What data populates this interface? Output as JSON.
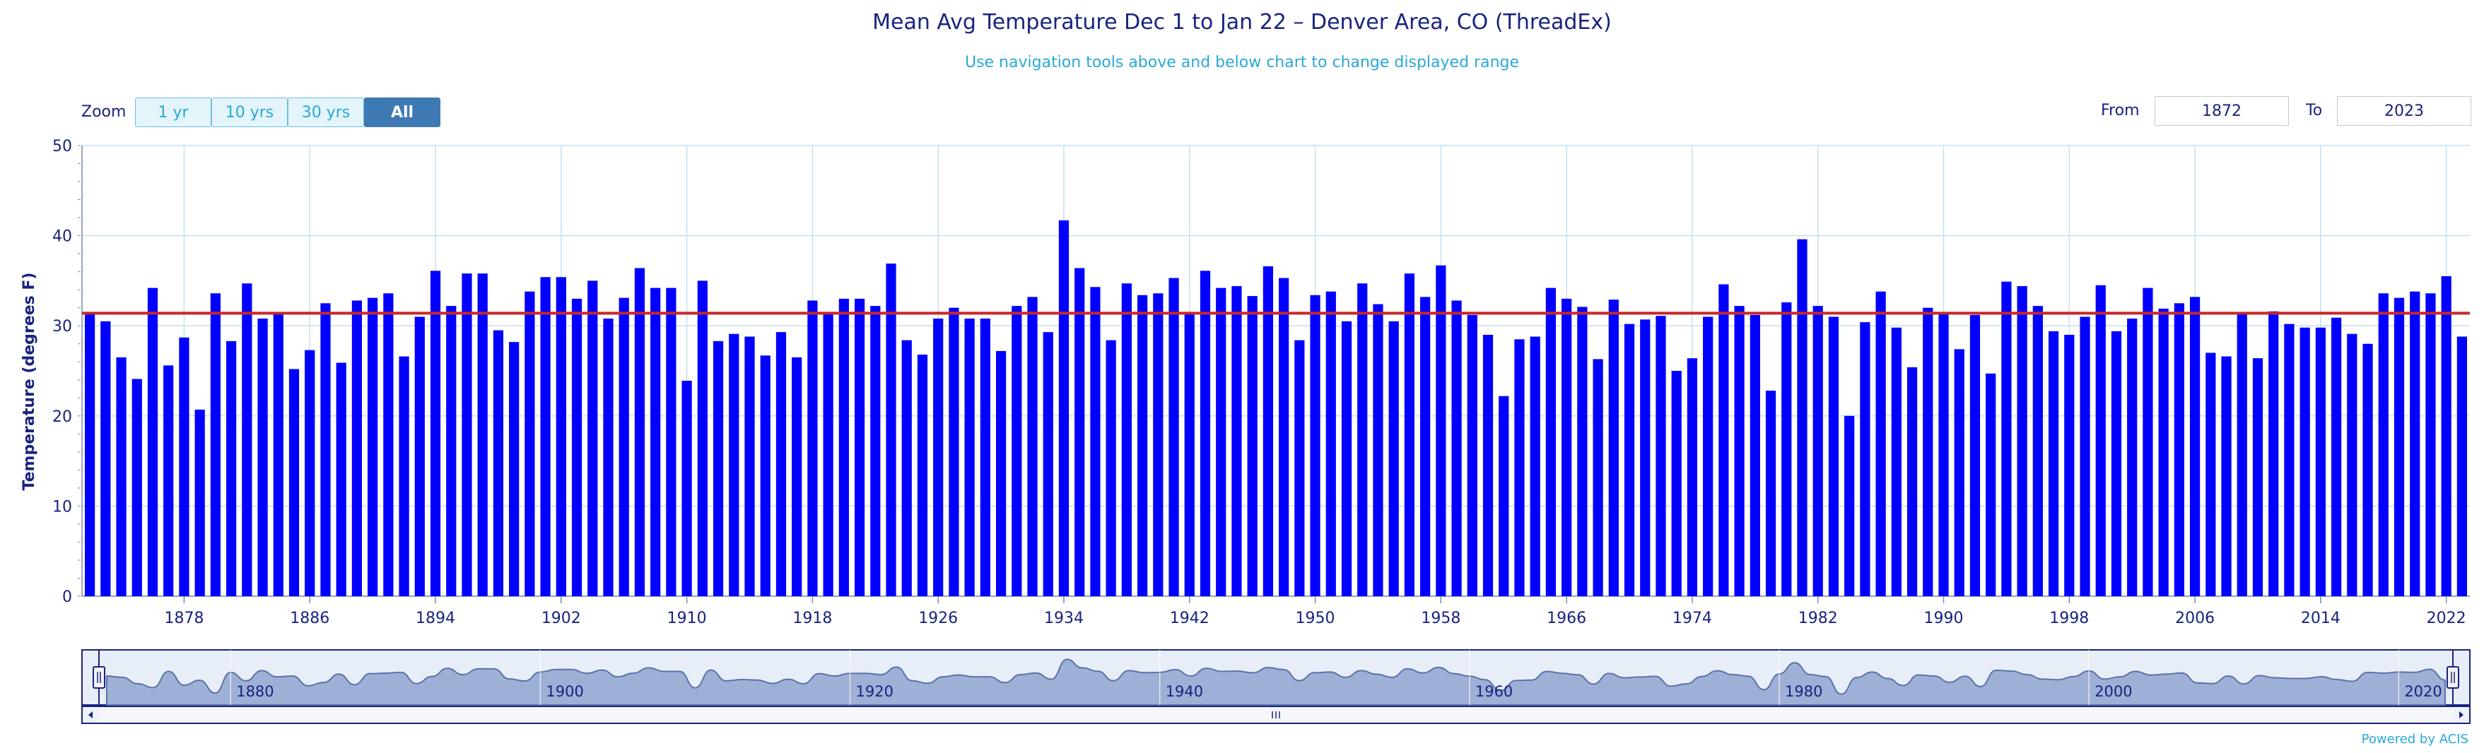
{
  "title": "Mean Avg Temperature Dec 1 to Jan 22 – Denver Area, CO (ThreadEx)",
  "subtitle": "Use navigation tools above and below chart to change displayed range",
  "zoom": {
    "label": "Zoom",
    "buttons": [
      "1 yr",
      "10 yrs",
      "30 yrs",
      "All"
    ],
    "active": "All"
  },
  "range": {
    "from_label": "From",
    "from_value": "1872",
    "to_label": "To",
    "to_value": "2023"
  },
  "powered_by": "Powered by ACIS",
  "colors": {
    "bar": "#0000ff",
    "mean_line": "#c62828",
    "axis_text": "#1a237e",
    "navigator_fill": "#9eb0d6"
  },
  "chart_data": {
    "type": "bar",
    "ylabel": "Temperature (degrees F)",
    "ylim": [
      0,
      50
    ],
    "yticks": [
      "0",
      "10",
      "20",
      "30",
      "40",
      "50"
    ],
    "x_start": 1872,
    "x_end": 2023,
    "xticks": [
      "1878",
      "1886",
      "1894",
      "1902",
      "1910",
      "1918",
      "1926",
      "1934",
      "1942",
      "1950",
      "1958",
      "1966",
      "1974",
      "1982",
      "1990",
      "1998",
      "2006",
      "2014",
      "2022"
    ],
    "navigator_ticks": [
      "1880",
      "1900",
      "1920",
      "1940",
      "1960",
      "1980",
      "2000",
      "2020"
    ],
    "mean_line": 31.4,
    "grid": true,
    "legend": "none",
    "values": [
      31.3,
      30.5,
      26.5,
      24.1,
      34.2,
      25.6,
      28.7,
      20.7,
      33.6,
      28.3,
      34.7,
      30.8,
      31.3,
      25.2,
      27.3,
      32.5,
      25.9,
      32.8,
      33.1,
      33.6,
      26.6,
      31.0,
      36.1,
      32.2,
      35.8,
      35.8,
      29.5,
      28.2,
      33.8,
      35.4,
      35.4,
      33.0,
      35.0,
      30.8,
      33.1,
      36.4,
      34.2,
      34.2,
      23.9,
      35.0,
      28.3,
      29.1,
      28.8,
      26.7,
      29.3,
      26.5,
      32.8,
      31.3,
      33.0,
      33.0,
      32.2,
      36.9,
      28.4,
      26.8,
      30.8,
      32.0,
      30.8,
      30.8,
      27.2,
      32.2,
      33.2,
      29.3,
      41.7,
      36.4,
      34.3,
      28.4,
      34.7,
      33.4,
      33.6,
      35.3,
      31.3,
      36.1,
      34.2,
      34.4,
      33.3,
      36.6,
      35.3,
      28.4,
      33.4,
      33.8,
      30.5,
      34.7,
      32.4,
      30.5,
      35.8,
      33.2,
      36.7,
      32.8,
      31.2,
      29.0,
      22.2,
      28.5,
      28.8,
      34.2,
      33.0,
      32.1,
      26.3,
      32.9,
      30.2,
      30.7,
      31.1,
      25.0,
      26.4,
      31.0,
      34.6,
      32.2,
      31.2,
      22.8,
      32.6,
      39.6,
      32.2,
      31.0,
      20.0,
      30.4,
      33.8,
      29.8,
      25.4,
      32.0,
      31.3,
      27.4,
      31.2,
      24.7,
      34.9,
      34.4,
      32.2,
      29.4,
      29.0,
      31.0,
      34.5,
      29.4,
      30.8,
      34.2,
      31.9,
      32.5,
      33.2,
      27.0,
      26.6,
      31.3,
      26.4,
      31.6,
      30.2,
      29.8,
      29.8,
      30.9,
      29.1,
      28.0,
      33.6,
      33.1,
      33.8,
      33.6,
      35.5,
      28.8
    ]
  }
}
